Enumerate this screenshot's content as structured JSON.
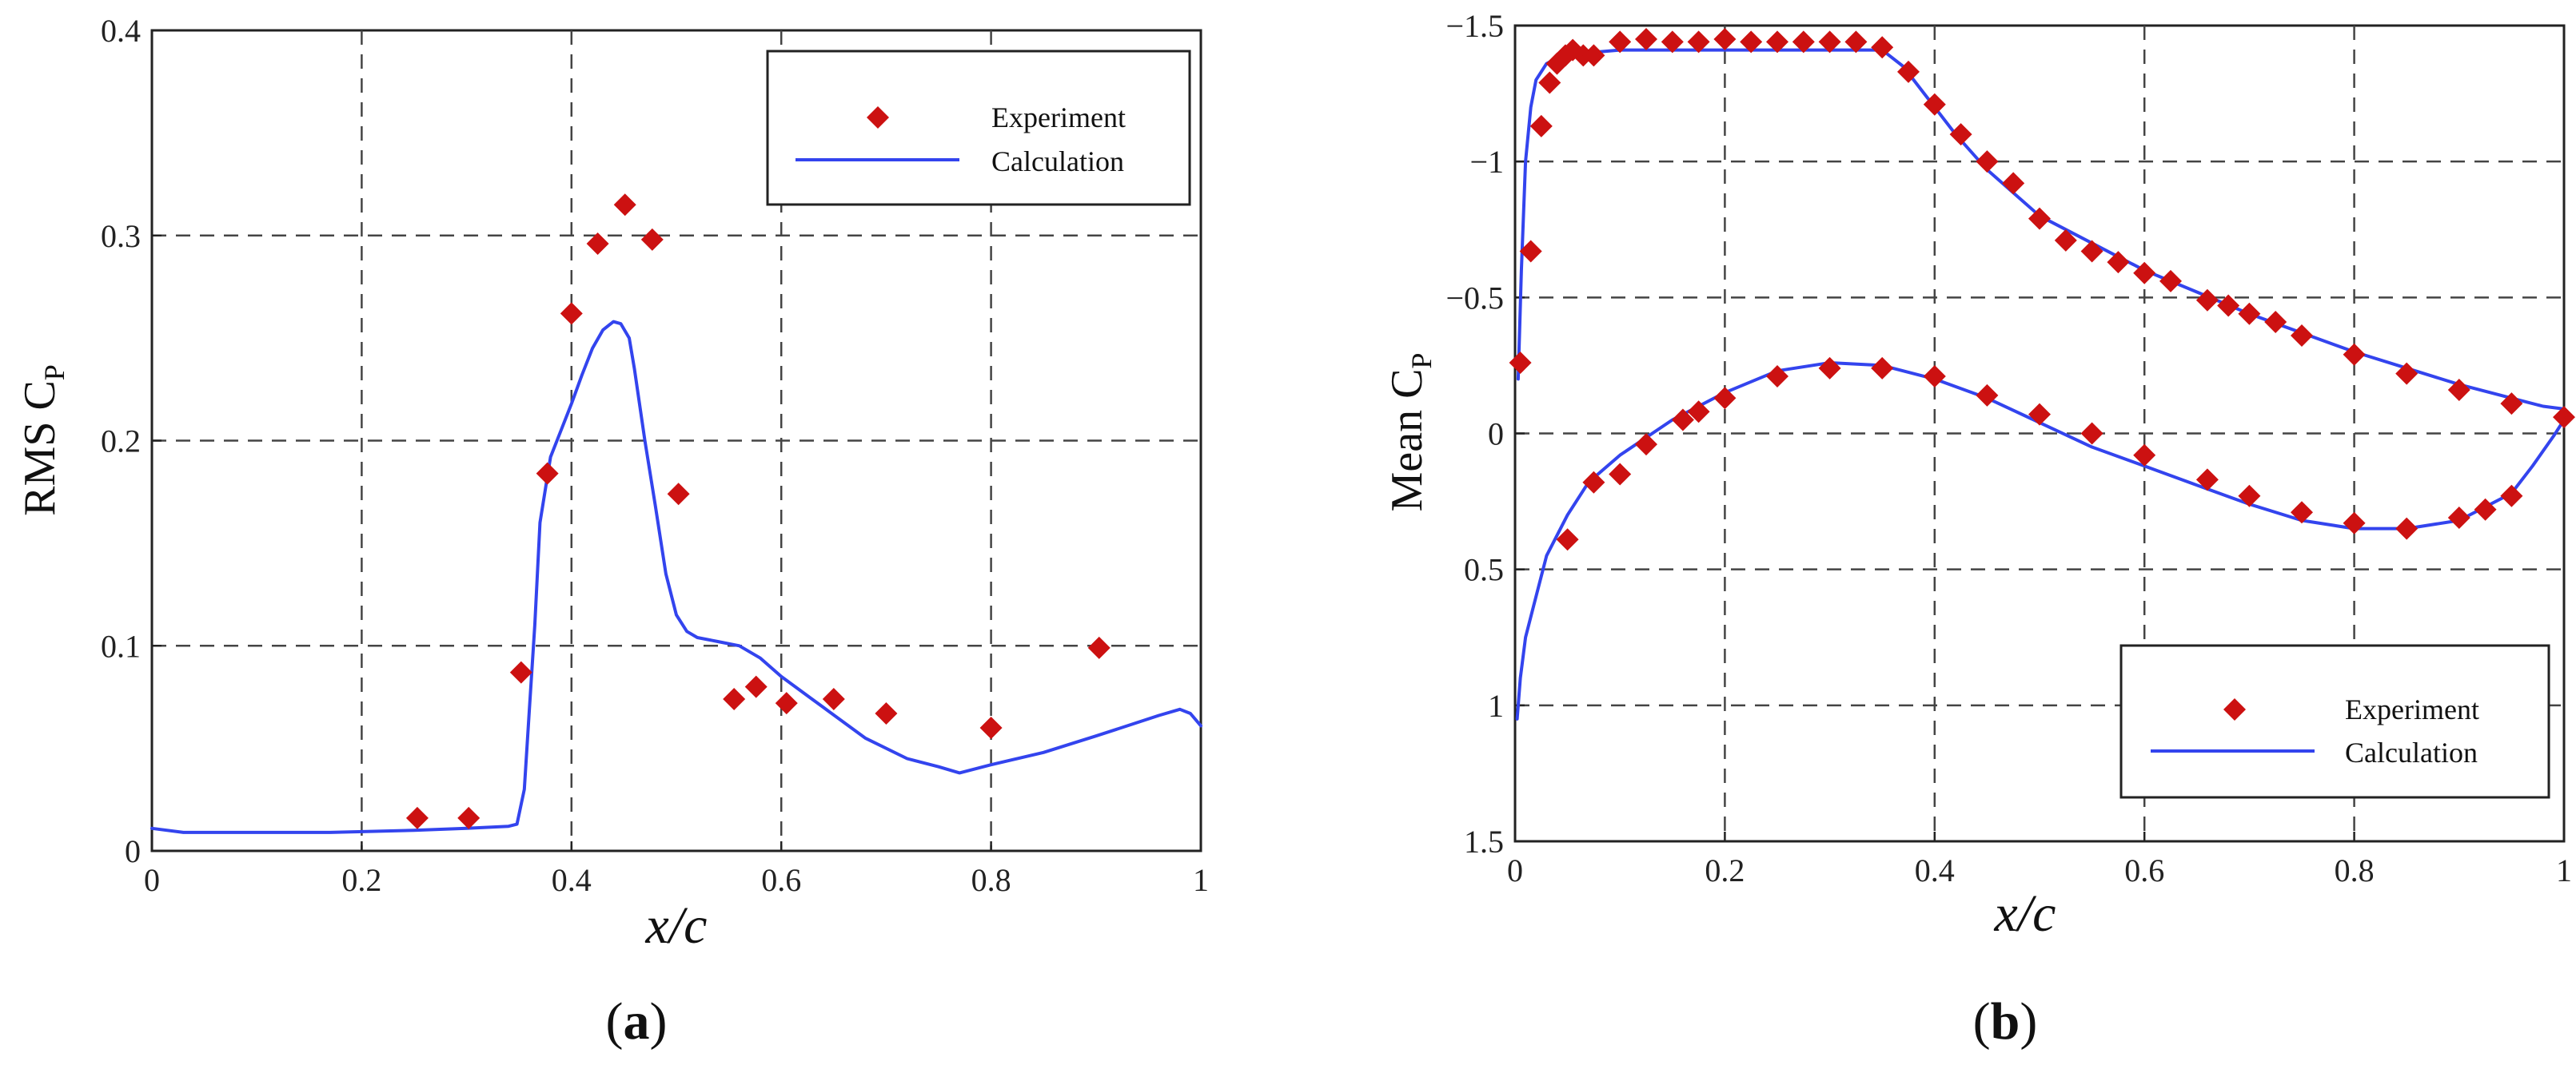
{
  "chart_data": [
    {
      "type": "scatter",
      "panel_label": "a",
      "title": "",
      "xlabel": "x/c",
      "ylabel_main": "RMS C",
      "ylabel_sub": "P",
      "xlim": [
        0,
        1
      ],
      "ylim": [
        0,
        0.4
      ],
      "y_inverted": false,
      "xticks": [
        0,
        0.2,
        0.4,
        0.6,
        0.8,
        1
      ],
      "xtick_labels": [
        "0",
        "0.2",
        "0.4",
        "0.6",
        "0.8",
        "1"
      ],
      "yticks": [
        0,
        0.1,
        0.2,
        0.3,
        0.4
      ],
      "ytick_labels": [
        "0",
        "0.1",
        "0.2",
        "0.3",
        "0.4"
      ],
      "grid": true,
      "legend_position": "top-right",
      "series": [
        {
          "name": "Experiment",
          "kind": "markers",
          "color": "#cc1111",
          "x": [
            0.253,
            0.302,
            0.352,
            0.377,
            0.4,
            0.425,
            0.451,
            0.477,
            0.502,
            0.555,
            0.576,
            0.605,
            0.65,
            0.7,
            0.8,
            0.903
          ],
          "y": [
            0.016,
            0.016,
            0.087,
            0.184,
            0.262,
            0.296,
            0.315,
            0.298,
            0.174,
            0.074,
            0.08,
            0.072,
            0.074,
            0.067,
            0.06,
            0.099
          ]
        },
        {
          "name": "Calculation",
          "kind": "line",
          "color": "#3344ee",
          "x": [
            0,
            0.03,
            0.1,
            0.17,
            0.25,
            0.3,
            0.34,
            0.348,
            0.355,
            0.36,
            0.365,
            0.37,
            0.38,
            0.39,
            0.4,
            0.41,
            0.42,
            0.43,
            0.44,
            0.447,
            0.455,
            0.46,
            0.47,
            0.48,
            0.49,
            0.5,
            0.51,
            0.52,
            0.54,
            0.56,
            0.58,
            0.6,
            0.64,
            0.68,
            0.72,
            0.75,
            0.77,
            0.8,
            0.85,
            0.9,
            0.93,
            0.96,
            0.98,
            0.99,
            1.0
          ],
          "y": [
            0.011,
            0.009,
            0.009,
            0.009,
            0.01,
            0.011,
            0.012,
            0.013,
            0.03,
            0.07,
            0.11,
            0.16,
            0.192,
            0.205,
            0.218,
            0.232,
            0.245,
            0.254,
            0.258,
            0.257,
            0.25,
            0.235,
            0.2,
            0.168,
            0.135,
            0.115,
            0.107,
            0.104,
            0.102,
            0.1,
            0.094,
            0.085,
            0.07,
            0.055,
            0.045,
            0.041,
            0.038,
            0.042,
            0.048,
            0.056,
            0.061,
            0.066,
            0.069,
            0.067,
            0.061
          ]
        }
      ]
    },
    {
      "type": "scatter",
      "panel_label": "b",
      "title": "",
      "xlabel": "x/c",
      "ylabel_main": "Mean C",
      "ylabel_sub": "P",
      "xlim": [
        0,
        1
      ],
      "ylim": [
        -1.5,
        1.5
      ],
      "y_inverted": true,
      "xticks": [
        0,
        0.2,
        0.4,
        0.6,
        0.8,
        1
      ],
      "xtick_labels": [
        "0",
        "0.2",
        "0.4",
        "0.6",
        "0.8",
        "1"
      ],
      "yticks": [
        -1.5,
        -1,
        -0.5,
        0,
        0.5,
        1,
        1.5
      ],
      "ytick_labels": [
        "-1.5",
        "-1",
        "-0.5",
        "0",
        "0.5",
        "1",
        "1.5"
      ],
      "grid": true,
      "legend_position": "bottom-right",
      "series": [
        {
          "name": "Experiment",
          "kind": "markers",
          "color": "#cc1111",
          "x": [
            0.005,
            0.015,
            0.025,
            0.033,
            0.04,
            0.048,
            0.055,
            0.065,
            0.075,
            0.1,
            0.125,
            0.15,
            0.175,
            0.2,
            0.225,
            0.25,
            0.275,
            0.3,
            0.325,
            0.35,
            0.375,
            0.4,
            0.425,
            0.45,
            0.475,
            0.5,
            0.525,
            0.55,
            0.575,
            0.6,
            0.625,
            0.66,
            0.68,
            0.7,
            0.725,
            0.75,
            0.8,
            0.85,
            0.9,
            0.95,
            1.0,
            0.05,
            0.075,
            0.1,
            0.125,
            0.16,
            0.175,
            0.2,
            0.25,
            0.3,
            0.35,
            0.4,
            0.45,
            0.5,
            0.55,
            0.6,
            0.66,
            0.7,
            0.75,
            0.8,
            0.85,
            0.9,
            0.925,
            0.95
          ],
          "y": [
            -0.26,
            -0.67,
            -1.13,
            -1.29,
            -1.36,
            -1.39,
            -1.41,
            -1.39,
            -1.39,
            -1.44,
            -1.45,
            -1.44,
            -1.44,
            -1.45,
            -1.44,
            -1.44,
            -1.44,
            -1.44,
            -1.44,
            -1.42,
            -1.33,
            -1.21,
            -1.1,
            -1.0,
            -0.92,
            -0.79,
            -0.71,
            -0.67,
            -0.63,
            -0.59,
            -0.56,
            -0.49,
            -0.47,
            -0.44,
            -0.41,
            -0.36,
            -0.29,
            -0.22,
            -0.16,
            -0.11,
            -0.06,
            0.39,
            0.18,
            0.15,
            0.04,
            -0.05,
            -0.08,
            -0.13,
            -0.21,
            -0.24,
            -0.24,
            -0.21,
            -0.14,
            -0.07,
            0.0,
            0.08,
            0.17,
            0.23,
            0.29,
            0.33,
            0.35,
            0.31,
            0.28,
            0.23
          ]
        },
        {
          "name": "Calculation",
          "kind": "line",
          "color": "#3344ee",
          "x": [
            0.003,
            0.006,
            0.01,
            0.015,
            0.02,
            0.03,
            0.04,
            0.05,
            0.07,
            0.1,
            0.2,
            0.3,
            0.35,
            0.37,
            0.39,
            0.42,
            0.45,
            0.5,
            0.55,
            0.6,
            0.65,
            0.7,
            0.75,
            0.8,
            0.85,
            0.9,
            0.95,
            0.98,
            1.0,
            1.0,
            0.99,
            0.97,
            0.95,
            0.9,
            0.85,
            0.8,
            0.75,
            0.7,
            0.65,
            0.6,
            0.55,
            0.5,
            0.45,
            0.4,
            0.35,
            0.3,
            0.25,
            0.2,
            0.15,
            0.1,
            0.07,
            0.05,
            0.03,
            0.02,
            0.01,
            0.005,
            0.002
          ],
          "y": [
            -0.2,
            -0.6,
            -1.0,
            -1.2,
            -1.3,
            -1.36,
            -1.38,
            -1.39,
            -1.4,
            -1.41,
            -1.41,
            -1.41,
            -1.41,
            -1.35,
            -1.25,
            -1.1,
            -0.97,
            -0.8,
            -0.7,
            -0.6,
            -0.52,
            -0.44,
            -0.37,
            -0.3,
            -0.24,
            -0.18,
            -0.13,
            -0.1,
            -0.09,
            -0.05,
            0.01,
            0.12,
            0.22,
            0.32,
            0.35,
            0.35,
            0.32,
            0.26,
            0.19,
            0.12,
            0.05,
            -0.04,
            -0.13,
            -0.2,
            -0.25,
            -0.26,
            -0.23,
            -0.15,
            -0.05,
            0.08,
            0.18,
            0.3,
            0.45,
            0.6,
            0.75,
            0.9,
            1.05
          ]
        }
      ]
    }
  ]
}
